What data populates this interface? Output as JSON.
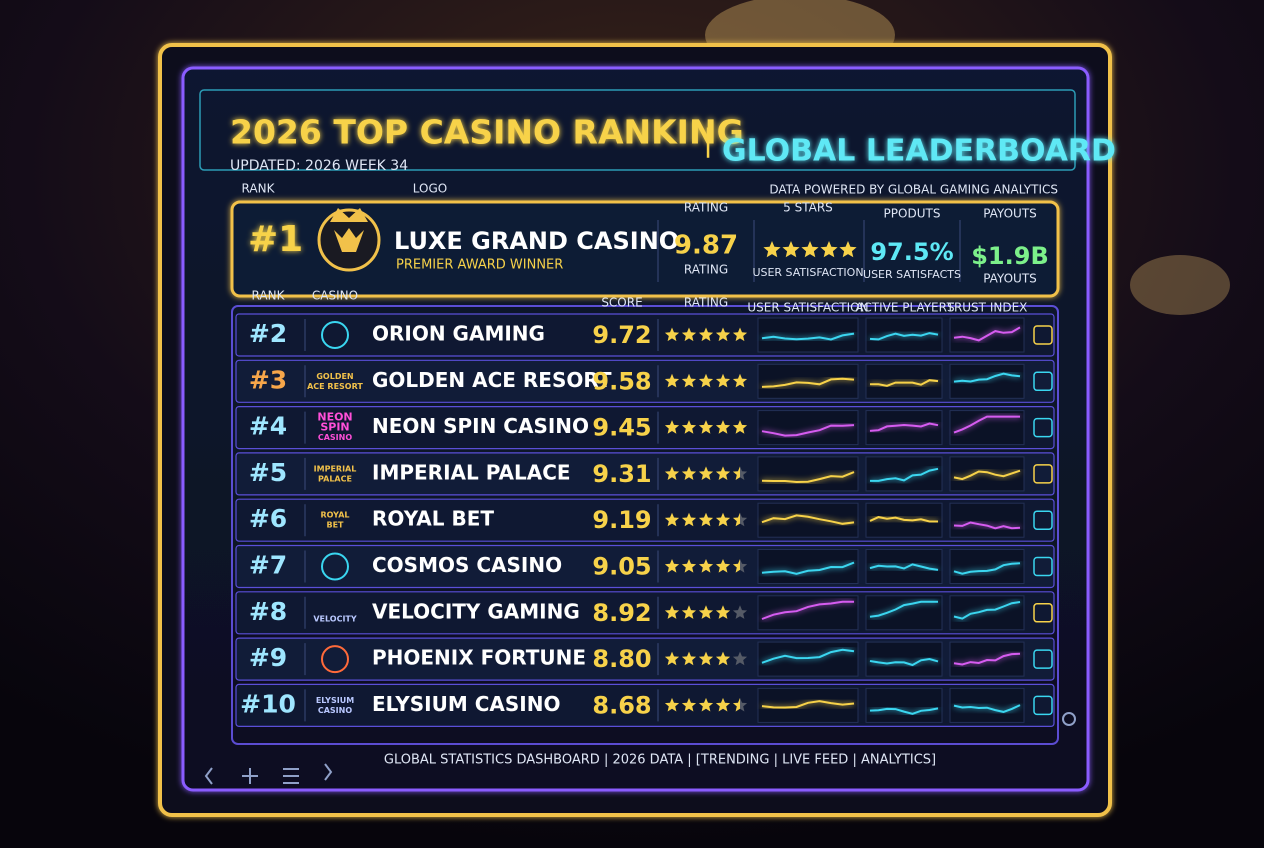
{
  "header": {
    "title": "2026 TOP CASINO RANKING",
    "separator": "|",
    "subtitle": "GLOBAL LEADERBOARD",
    "updated": "UPDATED: 2026 WEEK 34",
    "source": "DATA POWERED BY GLOBAL GAMING ANALYTICS"
  },
  "top": {
    "labels": [
      "RANK",
      "LOGO",
      "RATING",
      "5 STARS",
      "PPODUTS",
      "PAYOUTS"
    ],
    "rank": "#1",
    "name": "LUXE GRAND CASINO",
    "award": "PREMIER AWARD WINNER",
    "rating": "9.87",
    "rating_label": "RATING",
    "stars": 5,
    "stars_label": "USER SATISFACTION",
    "satisfaction": "97.5%",
    "satisfaction_label": "USER SATISFACTS",
    "payouts": "$1.9B",
    "payouts_label": "PAYOUTS"
  },
  "table": {
    "columns": [
      "RANK",
      "CASINO",
      "SCORE",
      "RATING",
      "USER SATISFACTION",
      "ACTIVE PLAYERS",
      "TRUST INDEX"
    ],
    "rows": [
      {
        "rank": "#2",
        "name": "ORION GAMING",
        "score": "9.72",
        "stars": 5
      },
      {
        "rank": "#3",
        "name": "GOLDEN ACE RESORT",
        "score": "9.58",
        "stars": 5,
        "logo": [
          "GOLDEN",
          "ACE RESORT"
        ]
      },
      {
        "rank": "#4",
        "name": "NEON SPIN CASINO",
        "score": "9.45",
        "stars": 5,
        "logo": [
          "NEON",
          "SPIN",
          "CASINO"
        ]
      },
      {
        "rank": "#5",
        "name": "IMPERIAL PALACE",
        "score": "9.31",
        "stars": 4.5,
        "logo": [
          "IMPERIAL",
          "PALACE"
        ]
      },
      {
        "rank": "#6",
        "name": "ROYAL BET",
        "score": "9.19",
        "stars": 4.5,
        "logo": [
          "ROYAL",
          "BET"
        ]
      },
      {
        "rank": "#7",
        "name": "COSMOS CASINO",
        "score": "9.05",
        "stars": 4.5
      },
      {
        "rank": "#8",
        "name": "VELOCITY GAMING",
        "score": "8.92",
        "stars": 4,
        "logo": [
          "VELOCITY"
        ]
      },
      {
        "rank": "#9",
        "name": "PHOENIX FORTUNE",
        "score": "8.80",
        "stars": 4
      },
      {
        "rank": "#10",
        "name": "ELYSIUM CASINO",
        "score": "8.68",
        "stars": 4.5,
        "logo": [
          "ELYSIUM",
          "CASINO"
        ]
      }
    ]
  },
  "footer": "GLOBAL STATISTICS DASHBOARD | 2026 DATA | [TRENDING | LIVE FEED | ANALYTICS]"
}
